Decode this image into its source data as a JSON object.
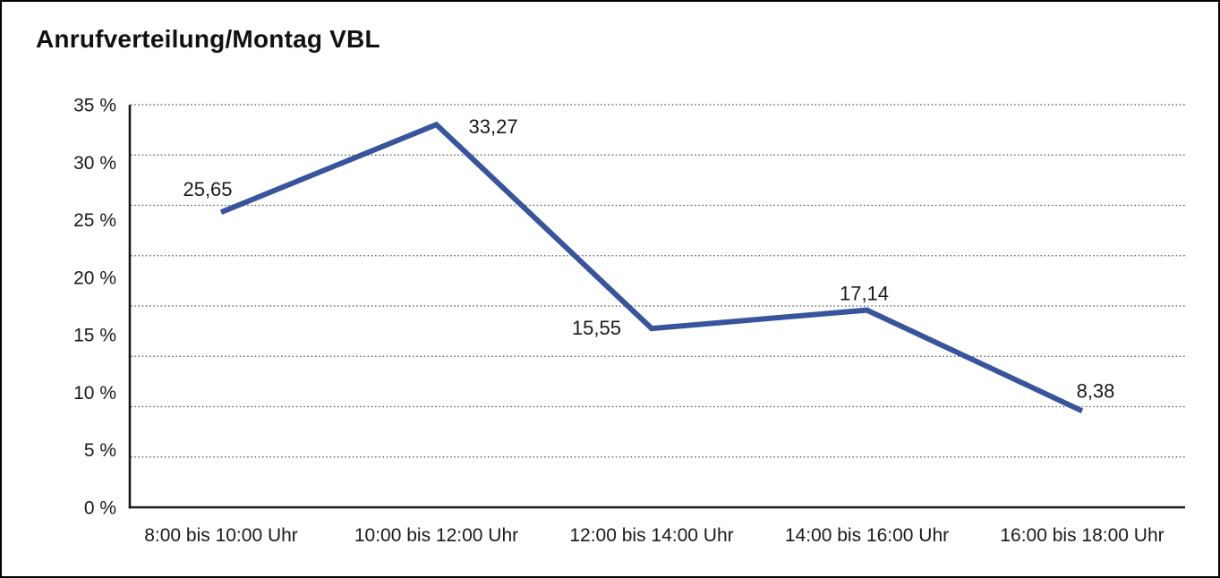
{
  "title": "Anrufverteilung/Montag VBL",
  "colors": {
    "line": "#37549D",
    "grid": "#555555",
    "axis": "#1a1a1a",
    "text": "#1a1a1a",
    "background": "#ffffff",
    "frame": "#000000"
  },
  "chart_data": {
    "type": "line",
    "title": "Anrufverteilung/Montag VBL",
    "categories": [
      "8:00 bis 10:00 Uhr",
      "10:00 bis 12:00 Uhr",
      "12:00 bis 14:00 Uhr",
      "14:00 bis 16:00 Uhr",
      "16:00 bis 18:00 Uhr"
    ],
    "values": [
      25.65,
      33.27,
      15.55,
      17.14,
      8.38
    ],
    "value_labels": [
      "25,65",
      "33,27",
      "15,55",
      "17,14",
      "8,38"
    ],
    "y_tick_labels": [
      "35 %",
      "30 %",
      "25 %",
      "20 %",
      "15 %",
      "10 %",
      "5 %",
      "0 %"
    ],
    "ylim": [
      0,
      35
    ],
    "xlabel": "",
    "ylabel": "",
    "grid": "horizontal-dotted",
    "gridline_count": 8,
    "legend_position": "none"
  }
}
